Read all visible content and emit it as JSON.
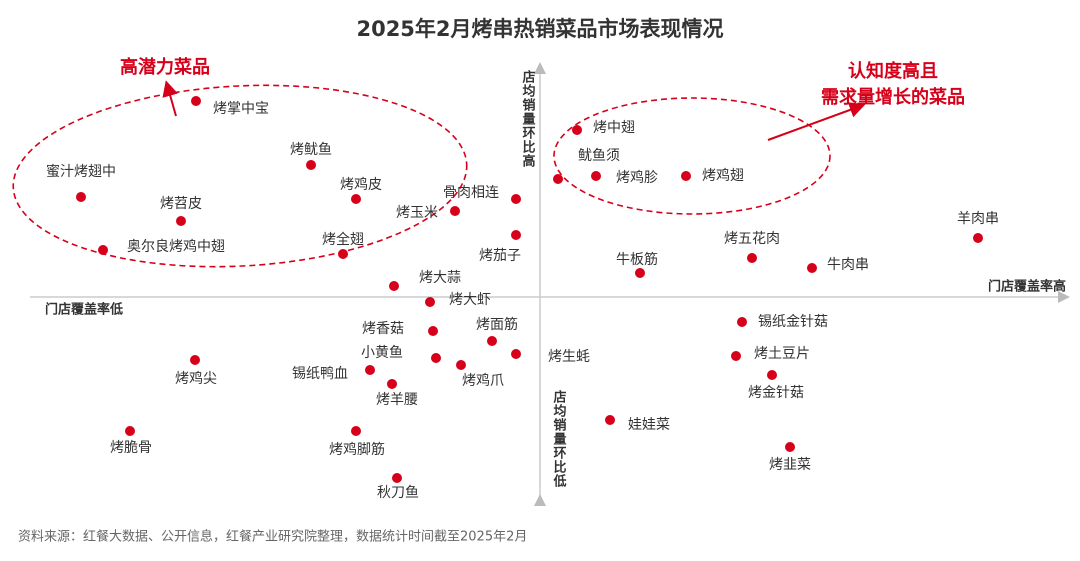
{
  "title": "2025年2月烤串热销菜品市场表现情况",
  "axes": {
    "y_high": "店均销量环比高",
    "y_low": "店均销量环比低",
    "x_low": "门店覆盖率低",
    "x_high": "门店覆盖率高"
  },
  "annotations": {
    "left": "高潜力菜品",
    "right_line1": "认知度高且",
    "right_line2": "需求量增长的菜品"
  },
  "items": [
    "烤掌中宝",
    "蜜汁烤翅中",
    "烤鱿鱼",
    "烤鸡皮",
    "烤苕皮",
    "烤玉米",
    "骨肉相连",
    "奥尔良烤鸡中翅",
    "烤全翅",
    "烤茄子",
    "烤大蒜",
    "烤大虾",
    "烤香菇",
    "烤面筋",
    "小黄鱼",
    "烤生蚝",
    "烤鸡爪",
    "锡纸鸭血",
    "烤羊腰",
    "烤鸡尖",
    "烤脆骨",
    "烤鸡脚筋",
    "秋刀鱼",
    "烤中翅",
    "鱿鱼须",
    "烤鸡胗",
    "烤鸡翅",
    "羊肉串",
    "烤五花肉",
    "牛板筋",
    "牛肉串",
    "锡纸金针菇",
    "烤土豆片",
    "烤金针菇",
    "娃娃菜",
    "烤韭菜"
  ],
  "source": "资料来源：红餐大数据、公开信息，红餐产业研究院整理，数据统计时间截至2025年2月"
}
